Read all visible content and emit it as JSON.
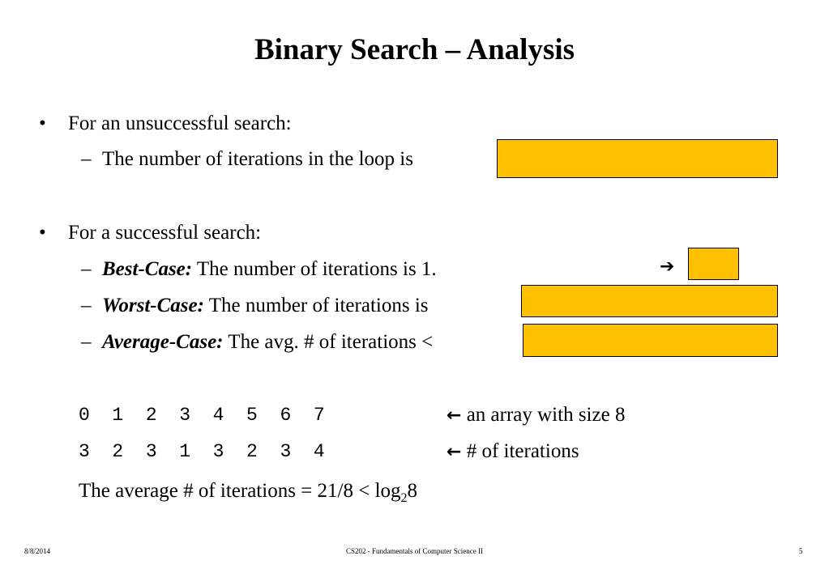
{
  "slide": {
    "title": "Binary Search – Analysis",
    "bullet1": {
      "mark": "•",
      "text": "For an unsuccessful search:",
      "sub1": {
        "mark": "–",
        "text": "The number of iterations in the loop is"
      }
    },
    "bullet2": {
      "mark": "•",
      "text": "For a successful search:",
      "best": {
        "mark": "–",
        "label": "Best-Case:",
        "text": " The number of iterations is 1.",
        "arrow": "➔"
      },
      "worst": {
        "mark": "–",
        "label": "Worst-Case:",
        "text": " The number of iterations is "
      },
      "average": {
        "mark": "–",
        "label": "Average-Case:",
        "text": "  The avg. # of iterations <"
      }
    },
    "array_row": {
      "indices": "0  1  2  3  4  5  6  7",
      "arrow": "←",
      "note": " an array with size 8"
    },
    "iter_row": {
      "values": "3  2  3  1  3  2  3  4",
      "arrow": "←",
      "note": "  # of iterations"
    },
    "average_line": {
      "text": "The average # of iterations = 21/8 < log",
      "sub": "2",
      "tail": "8"
    }
  },
  "footer": {
    "date": "8/8/2014",
    "course": "CS202 - Fundamentals of Computer Science II",
    "page": "5"
  },
  "colors": {
    "highlight": "#ffc000"
  }
}
